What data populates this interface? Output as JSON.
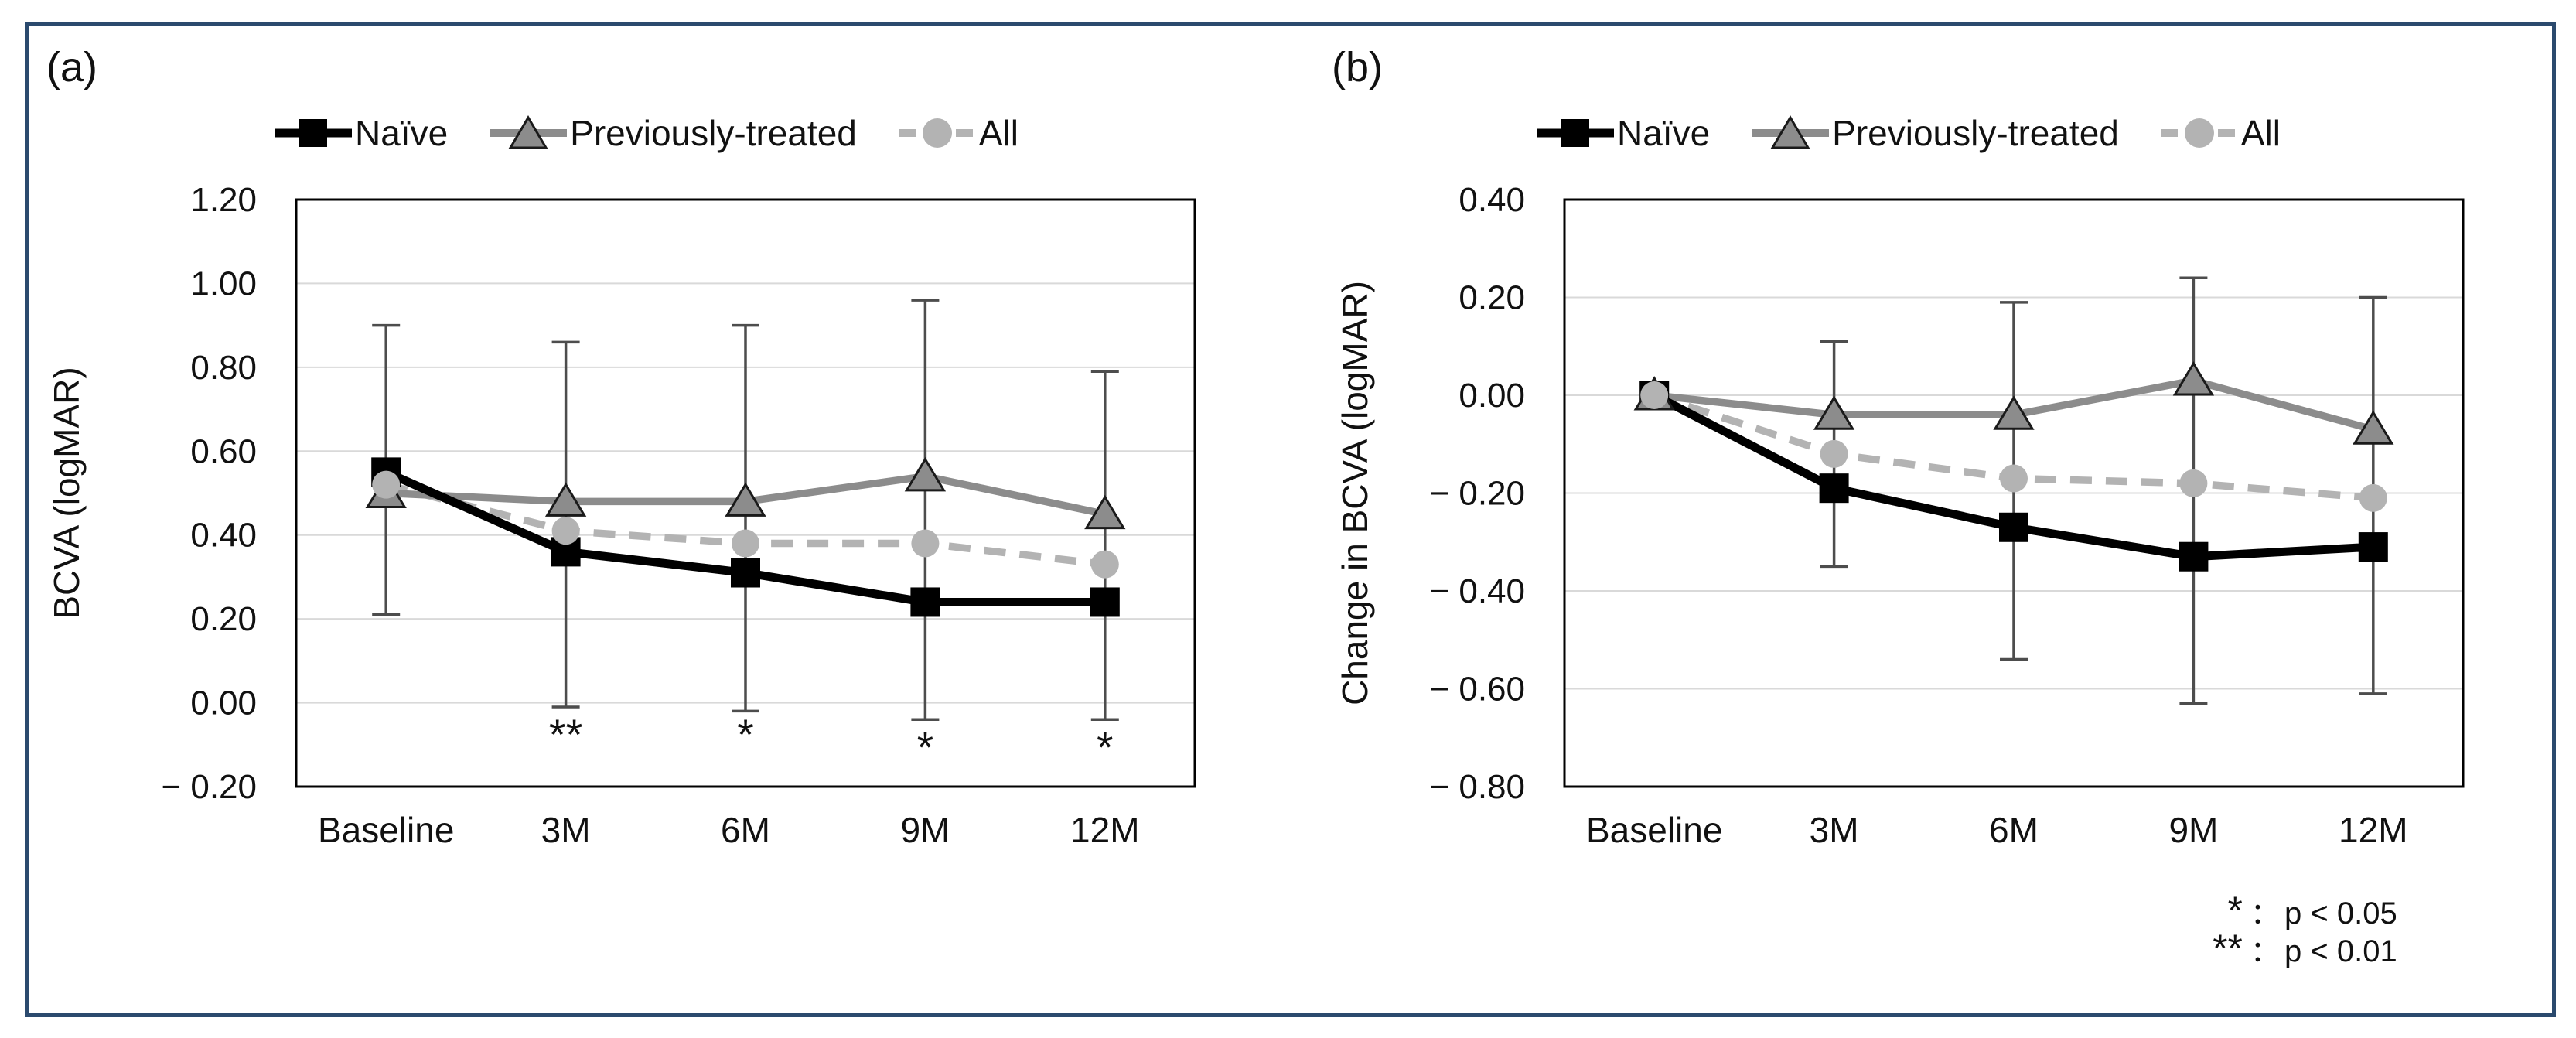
{
  "figure": {
    "panel_a_label": "(a)",
    "panel_b_label": "(b)"
  },
  "colors": {
    "border": "#2b4a6e",
    "naive": "#000000",
    "previously_treated": "#8c8c8c",
    "previously_treated_marker_outline": "#1a1a1a",
    "all": "#b3b3b3",
    "error_bar": "#4d4d4d",
    "gridline": "#d9d9d9",
    "frame": "#000000",
    "text": "#111111"
  },
  "footnote": {
    "rows": [
      {
        "symbol": "*",
        "colon": "：",
        "text": "p < 0.05"
      },
      {
        "symbol": "**",
        "colon": "：",
        "text": "p < 0.01"
      }
    ]
  },
  "chart_data": [
    {
      "panel": "(a)",
      "type": "line",
      "title": "",
      "ylabel": "BCVA (logMAR)",
      "xlabel": "",
      "ylim": [
        -0.2,
        1.2
      ],
      "grid": true,
      "legend_position": "top",
      "yticks": [
        {
          "value": 1.2,
          "label": "1.20"
        },
        {
          "value": 1.0,
          "label": "1.00"
        },
        {
          "value": 0.8,
          "label": "0.80"
        },
        {
          "value": 0.6,
          "label": "0.60"
        },
        {
          "value": 0.4,
          "label": "0.40"
        },
        {
          "value": 0.2,
          "label": "0.20"
        },
        {
          "value": 0.0,
          "label": "0.00"
        },
        {
          "value": -0.2,
          "label": "− 0.20"
        }
      ],
      "categories": [
        "Baseline",
        "3M",
        "6M",
        "9M",
        "12M"
      ],
      "series": [
        {
          "name": "Naïve",
          "marker": "square",
          "line": "solid",
          "color_key": "naive",
          "values": [
            0.55,
            0.36,
            0.31,
            0.24,
            0.24
          ]
        },
        {
          "name": "Previously-treated",
          "marker": "triangle",
          "line": "solid",
          "color_key": "previously_treated",
          "values": [
            0.5,
            0.48,
            0.48,
            0.54,
            0.45
          ]
        },
        {
          "name": "All",
          "marker": "circle",
          "line": "dashed",
          "color_key": "all",
          "values": [
            0.52,
            0.41,
            0.38,
            0.38,
            0.33
          ]
        }
      ],
      "error_bars": {
        "top": [
          0.9,
          0.86,
          0.9,
          0.96,
          0.79
        ],
        "bottom": [
          0.21,
          -0.01,
          -0.02,
          -0.04,
          -0.04
        ]
      },
      "significance": [
        {
          "category_index": 1,
          "label": "**",
          "y": -0.075
        },
        {
          "category_index": 2,
          "label": "*",
          "y": -0.075
        },
        {
          "category_index": 3,
          "label": "*",
          "y": -0.105
        },
        {
          "category_index": 4,
          "label": "*",
          "y": -0.105
        }
      ]
    },
    {
      "panel": "(b)",
      "type": "line",
      "title": "",
      "ylabel": "Change in BCVA (logMAR)",
      "xlabel": "",
      "ylim": [
        -0.8,
        0.4
      ],
      "grid": true,
      "legend_position": "top",
      "yticks": [
        {
          "value": 0.4,
          "label": "0.40"
        },
        {
          "value": 0.2,
          "label": "0.20"
        },
        {
          "value": 0.0,
          "label": "0.00"
        },
        {
          "value": -0.2,
          "label": "− 0.20"
        },
        {
          "value": -0.4,
          "label": "− 0.40"
        },
        {
          "value": -0.6,
          "label": "− 0.60"
        },
        {
          "value": -0.8,
          "label": "− 0.80"
        }
      ],
      "categories": [
        "Baseline",
        "3M",
        "6M",
        "9M",
        "12M"
      ],
      "series": [
        {
          "name": "Naïve",
          "marker": "square",
          "line": "solid",
          "color_key": "naive",
          "values": [
            0.0,
            -0.19,
            -0.27,
            -0.33,
            -0.31
          ]
        },
        {
          "name": "Previously-treated",
          "marker": "triangle",
          "line": "solid",
          "color_key": "previously_treated",
          "values": [
            0.0,
            -0.04,
            -0.04,
            0.03,
            -0.07
          ]
        },
        {
          "name": "All",
          "marker": "circle",
          "line": "dashed",
          "color_key": "all",
          "values": [
            0.0,
            -0.12,
            -0.17,
            -0.18,
            -0.21
          ]
        }
      ],
      "error_bars": {
        "top": [
          null,
          0.11,
          0.19,
          0.24,
          0.2
        ],
        "bottom": [
          null,
          -0.35,
          -0.54,
          -0.63,
          -0.61
        ]
      },
      "significance": []
    }
  ]
}
